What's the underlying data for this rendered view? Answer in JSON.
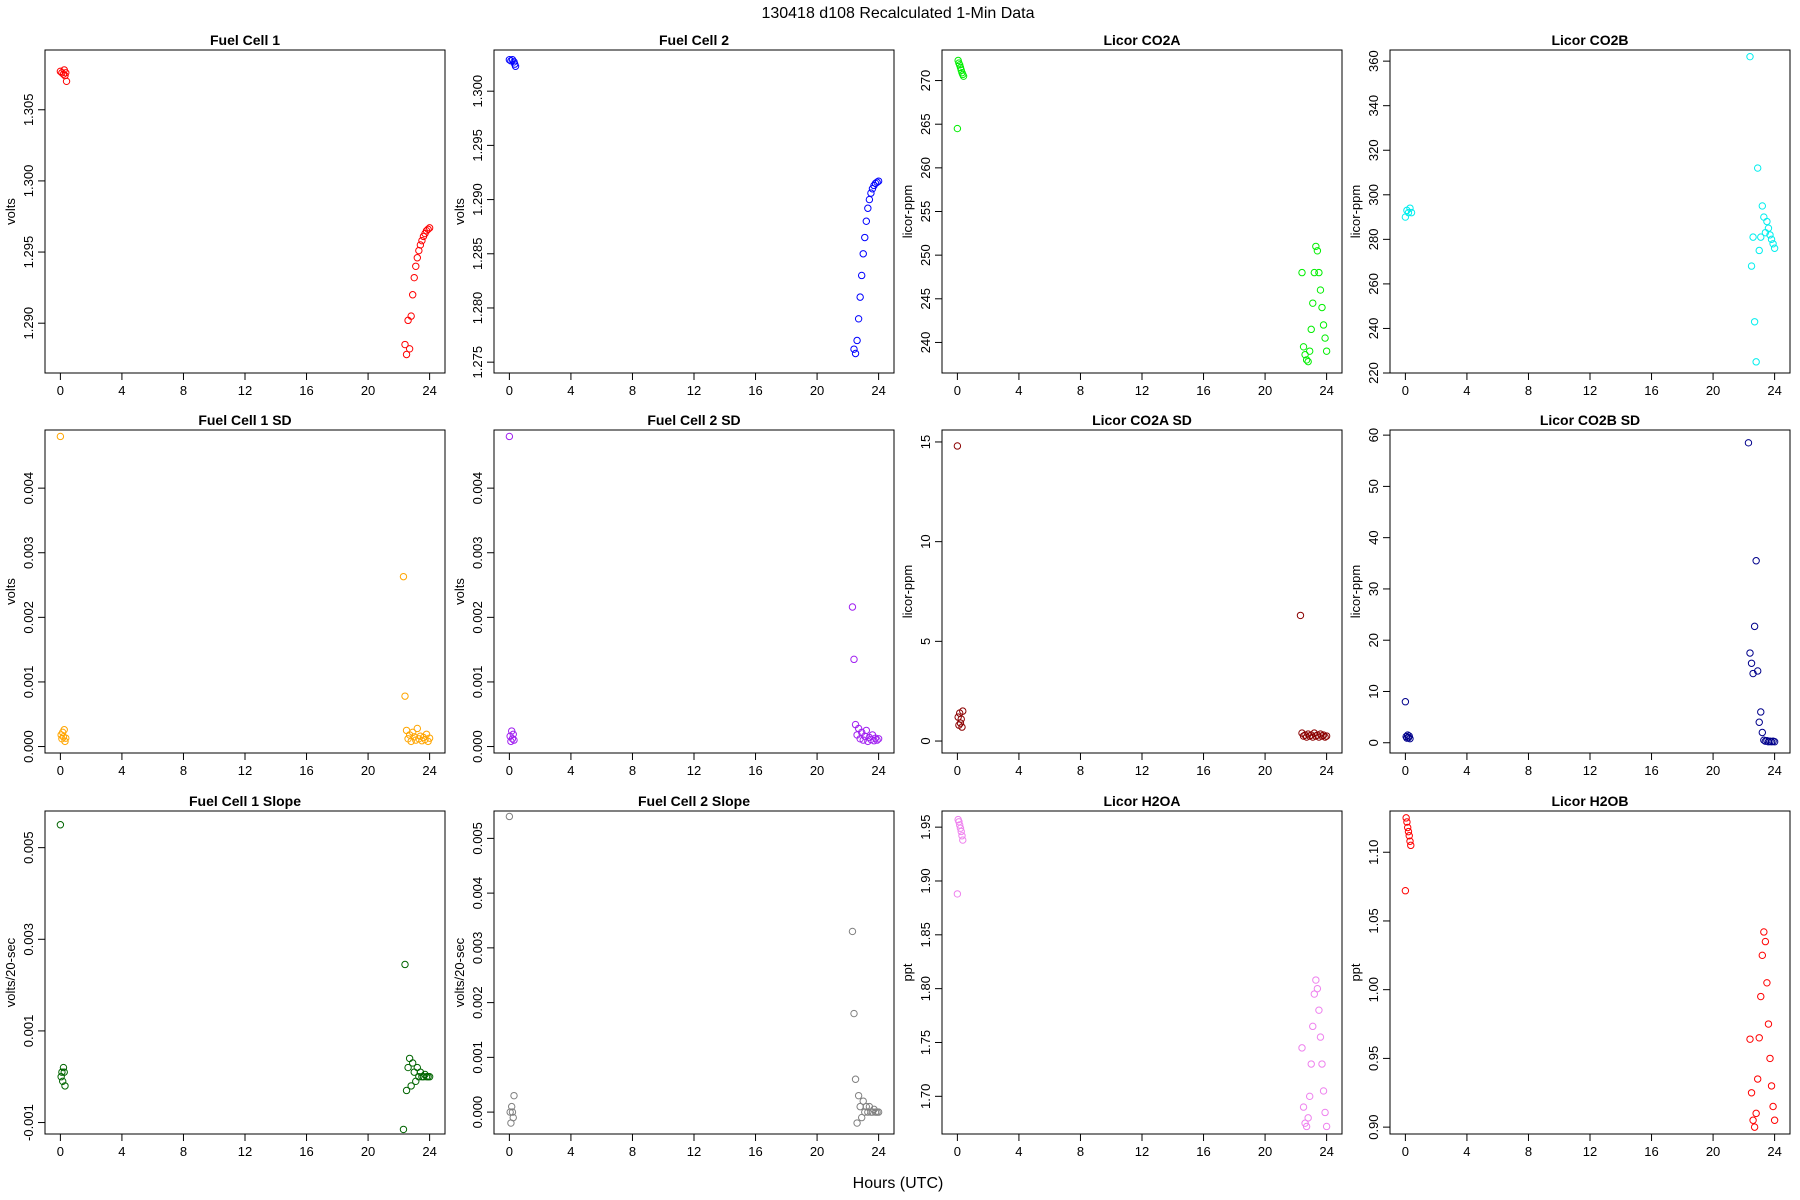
{
  "figure": {
    "suptitle": "130418   d108   Recalculated 1-Min Data",
    "xlabel": "Hours (UTC)"
  },
  "chart_data": [
    {
      "type": "scatter",
      "title": "Fuel Cell 1",
      "ylabel": "volts",
      "color": "#ff0000",
      "xlim": [
        -1,
        25
      ],
      "ylim": [
        1.2865,
        1.3092
      ],
      "xticks": [
        0,
        4,
        8,
        12,
        16,
        20,
        24
      ],
      "yticks": [
        1.29,
        1.295,
        1.3,
        1.305
      ],
      "ytick_labels": [
        "1.290",
        "1.295",
        "1.300",
        "1.305"
      ],
      "series": [
        {
          "x": [
            0.0,
            0.1,
            0.2,
            0.25,
            0.3,
            0.35,
            0.4
          ],
          "y": [
            1.3077,
            1.3076,
            1.3075,
            1.3078,
            1.3074,
            1.3076,
            1.307
          ]
        },
        {
          "x": [
            22.4,
            22.5,
            22.6,
            22.7,
            22.8,
            22.9,
            23.0,
            23.1,
            23.2,
            23.3,
            23.4,
            23.5,
            23.6,
            23.7,
            23.8,
            23.9,
            24.0
          ],
          "y": [
            1.2885,
            1.2878,
            1.2902,
            1.2882,
            1.2905,
            1.292,
            1.2932,
            1.294,
            1.2946,
            1.2951,
            1.2955,
            1.2958,
            1.2961,
            1.2963,
            1.2965,
            1.2966,
            1.2967
          ]
        }
      ]
    },
    {
      "type": "scatter",
      "title": "Fuel Cell 2",
      "ylabel": "volts",
      "color": "#0000ff",
      "xlim": [
        -1,
        25
      ],
      "ylim": [
        1.274,
        1.3038
      ],
      "xticks": [
        0,
        4,
        8,
        12,
        16,
        20,
        24
      ],
      "yticks": [
        1.275,
        1.28,
        1.285,
        1.29,
        1.295,
        1.3
      ],
      "ytick_labels": [
        "1.275",
        "1.280",
        "1.285",
        "1.290",
        "1.295",
        "1.300"
      ],
      "series": [
        {
          "x": [
            0.0,
            0.1,
            0.2,
            0.3,
            0.35,
            0.4
          ],
          "y": [
            1.3029,
            1.3028,
            1.3029,
            1.3027,
            1.3025,
            1.3023
          ]
        },
        {
          "x": [
            22.4,
            22.5,
            22.6,
            22.7,
            22.8,
            22.9,
            23.0,
            23.1,
            23.2,
            23.3,
            23.4,
            23.5,
            23.6,
            23.7,
            23.8,
            23.9,
            24.0
          ],
          "y": [
            1.2762,
            1.2758,
            1.277,
            1.279,
            1.281,
            1.283,
            1.285,
            1.2865,
            1.288,
            1.2892,
            1.29,
            1.2906,
            1.291,
            1.2913,
            1.2915,
            1.2916,
            1.2917
          ]
        }
      ]
    },
    {
      "type": "scatter",
      "title": "Licor CO2A",
      "ylabel": "licor-ppm",
      "color": "#00ee00",
      "xlim": [
        -1,
        25
      ],
      "ylim": [
        236.5,
        273.5
      ],
      "xticks": [
        0,
        4,
        8,
        12,
        16,
        20,
        24
      ],
      "yticks": [
        240,
        245,
        250,
        255,
        260,
        265,
        270
      ],
      "ytick_labels": [
        "240",
        "245",
        "250",
        "255",
        "260",
        "265",
        "270"
      ],
      "series": [
        {
          "x": [
            0.0,
            0.05,
            0.1,
            0.15,
            0.2,
            0.25,
            0.3,
            0.35,
            0.4
          ],
          "y": [
            264.5,
            272.3,
            272.0,
            271.8,
            271.5,
            271.2,
            270.9,
            270.7,
            270.5
          ]
        },
        {
          "x": [
            22.4,
            22.5,
            22.6,
            22.7,
            22.8,
            22.9,
            23.0,
            23.1,
            23.2,
            23.3,
            23.4,
            23.5,
            23.6,
            23.7,
            23.8,
            23.9,
            24.0
          ],
          "y": [
            248.0,
            239.5,
            238.6,
            238.0,
            237.8,
            239.0,
            241.5,
            244.5,
            248.0,
            251.0,
            250.5,
            248.0,
            246.0,
            244.0,
            242.0,
            240.5,
            239.0
          ]
        }
      ]
    },
    {
      "type": "scatter",
      "title": "Licor CO2B",
      "ylabel": "licor-ppm",
      "color": "#00eeee",
      "xlim": [
        -1,
        25
      ],
      "ylim": [
        220,
        365
      ],
      "xticks": [
        0,
        4,
        8,
        12,
        16,
        20,
        24
      ],
      "yticks": [
        220,
        240,
        260,
        280,
        300,
        320,
        340,
        360
      ],
      "ytick_labels": [
        "220",
        "240",
        "260",
        "280",
        "300",
        "320",
        "340",
        "360"
      ],
      "series": [
        {
          "x": [
            0.0,
            0.1,
            0.2,
            0.3,
            0.4
          ],
          "y": [
            290,
            293,
            292,
            294,
            292
          ]
        },
        {
          "x": [
            22.4,
            22.5,
            22.6,
            22.7,
            22.8,
            22.9,
            23.0,
            23.1,
            23.2,
            23.3,
            23.4,
            23.5,
            23.6,
            23.7,
            23.8,
            23.9,
            24.0
          ],
          "y": [
            362,
            268,
            281,
            243,
            225,
            312,
            275,
            281,
            295,
            290,
            283,
            288,
            285,
            282,
            280,
            278,
            276
          ]
        }
      ]
    },
    {
      "type": "scatter",
      "title": "Fuel Cell 1 SD",
      "ylabel": "volts",
      "color": "#ffa500",
      "xlim": [
        -1,
        25
      ],
      "ylim": [
        -0.0001,
        0.0049
      ],
      "xticks": [
        0,
        4,
        8,
        12,
        16,
        20,
        24
      ],
      "yticks": [
        0.0,
        0.001,
        0.002,
        0.003,
        0.004
      ],
      "ytick_labels": [
        "0.000",
        "0.001",
        "0.002",
        "0.003",
        "0.004"
      ],
      "series": [
        {
          "x": [
            0.0,
            0.05,
            0.1,
            0.15,
            0.2,
            0.25,
            0.3,
            0.35
          ],
          "y": [
            0.0048,
            0.00018,
            0.00012,
            0.00022,
            0.00015,
            0.00026,
            8e-05,
            0.00013
          ]
        },
        {
          "x": [
            22.3,
            22.4,
            22.5,
            22.6,
            22.7,
            22.8,
            22.9,
            23.0,
            23.1,
            23.2,
            23.3,
            23.4,
            23.5,
            23.6,
            23.7,
            23.8,
            23.9,
            24.0
          ],
          "y": [
            0.00263,
            0.00078,
            0.00025,
            0.00012,
            0.00018,
            8e-05,
            0.00022,
            0.00015,
            0.0001,
            0.00028,
            0.00012,
            0.00016,
            9e-05,
            0.00014,
            0.00011,
            0.00019,
            8e-05,
            0.00013
          ]
        }
      ]
    },
    {
      "type": "scatter",
      "title": "Fuel Cell 2 SD",
      "ylabel": "volts",
      "color": "#a020f0",
      "xlim": [
        -1,
        25
      ],
      "ylim": [
        -0.0001,
        0.0049
      ],
      "xticks": [
        0,
        4,
        8,
        12,
        16,
        20,
        24
      ],
      "yticks": [
        0.0,
        0.001,
        0.002,
        0.003,
        0.004
      ],
      "ytick_labels": [
        "0.000",
        "0.001",
        "0.002",
        "0.003",
        "0.004"
      ],
      "series": [
        {
          "x": [
            0.0,
            0.05,
            0.1,
            0.15,
            0.2,
            0.25,
            0.3
          ],
          "y": [
            0.0048,
            0.00016,
            8e-05,
            0.00024,
            0.00012,
            0.00019,
            0.0001
          ]
        },
        {
          "x": [
            22.3,
            22.4,
            22.5,
            22.6,
            22.7,
            22.8,
            22.9,
            23.0,
            23.1,
            23.2,
            23.3,
            23.4,
            23.5,
            23.6,
            23.7,
            23.8,
            23.9,
            24.0
          ],
          "y": [
            0.00216,
            0.00135,
            0.00034,
            0.00018,
            0.00028,
            0.00012,
            0.00022,
            0.0001,
            0.00016,
            0.00025,
            8e-05,
            0.00014,
            0.00011,
            0.00018,
            9e-05,
            0.00013,
            0.0001,
            0.00012
          ]
        }
      ]
    },
    {
      "type": "scatter",
      "title": "Licor CO2A SD",
      "ylabel": "licor-ppm",
      "color": "#8b0000",
      "xlim": [
        -1,
        25
      ],
      "ylim": [
        -0.6,
        15.6
      ],
      "xticks": [
        0,
        4,
        8,
        12,
        16,
        20,
        24
      ],
      "yticks": [
        0,
        5,
        10,
        15
      ],
      "ytick_labels": [
        "0",
        "5",
        "10",
        "15"
      ],
      "series": [
        {
          "x": [
            0.0,
            0.05,
            0.1,
            0.15,
            0.2,
            0.25,
            0.3,
            0.35
          ],
          "y": [
            14.8,
            1.2,
            0.8,
            1.4,
            0.9,
            1.1,
            0.7,
            1.5
          ]
        },
        {
          "x": [
            22.3,
            22.4,
            22.5,
            22.6,
            22.7,
            22.8,
            22.9,
            23.0,
            23.1,
            23.2,
            23.3,
            23.4,
            23.5,
            23.6,
            23.7,
            23.8,
            23.9,
            24.0
          ],
          "y": [
            6.3,
            0.4,
            0.25,
            0.3,
            0.2,
            0.35,
            0.25,
            0.3,
            0.2,
            0.4,
            0.25,
            0.3,
            0.2,
            0.35,
            0.25,
            0.3,
            0.2,
            0.25
          ]
        }
      ]
    },
    {
      "type": "scatter",
      "title": "Licor CO2B SD",
      "ylabel": "licor-ppm",
      "color": "#00008b",
      "xlim": [
        -1,
        25
      ],
      "ylim": [
        -2,
        61
      ],
      "xticks": [
        0,
        4,
        8,
        12,
        16,
        20,
        24
      ],
      "yticks": [
        0,
        10,
        20,
        30,
        40,
        50,
        60
      ],
      "ytick_labels": [
        "0",
        "10",
        "20",
        "30",
        "40",
        "50",
        "60"
      ],
      "series": [
        {
          "x": [
            0.0,
            0.05,
            0.1,
            0.15,
            0.2,
            0.25,
            0.3
          ],
          "y": [
            8.0,
            1.2,
            0.9,
            1.5,
            1.0,
            1.3,
            0.8
          ]
        },
        {
          "x": [
            22.3,
            22.4,
            22.5,
            22.6,
            22.7,
            22.8,
            22.9,
            23.0,
            23.1,
            23.2,
            23.3,
            23.4,
            23.5,
            23.6,
            23.7,
            23.8,
            23.9,
            24.0
          ],
          "y": [
            58.5,
            17.5,
            15.5,
            13.5,
            22.7,
            35.5,
            14.0,
            4.0,
            6.0,
            2.0,
            0.5,
            0.3,
            0.4,
            0.2,
            0.3,
            0.2,
            0.3,
            0.2
          ]
        }
      ]
    },
    {
      "type": "scatter",
      "title": "Fuel Cell 1 Slope",
      "ylabel": "volts/20-sec",
      "color": "#006400",
      "xlim": [
        -1,
        25
      ],
      "ylim": [
        -0.00125,
        0.0058
      ],
      "xticks": [
        0,
        4,
        8,
        12,
        16,
        20,
        24
      ],
      "yticks": [
        -0.001,
        0.001,
        0.003,
        0.005
      ],
      "ytick_labels": [
        "-0.001",
        "0.001",
        "0.003",
        "0.005"
      ],
      "series": [
        {
          "x": [
            0.0,
            0.05,
            0.1,
            0.15,
            0.2,
            0.25,
            0.3
          ],
          "y": [
            0.0055,
            0.0,
            0.0001,
            -0.0001,
            0.0002,
            0.0001,
            -0.0002
          ]
        },
        {
          "x": [
            22.3,
            22.4,
            22.5,
            22.6,
            22.7,
            22.8,
            22.9,
            23.0,
            23.1,
            23.2,
            23.3,
            23.4,
            23.5,
            23.6,
            23.7,
            23.8,
            23.9,
            24.0
          ],
          "y": [
            -0.00115,
            0.00245,
            -0.0003,
            0.0002,
            0.0004,
            -0.0002,
            0.0003,
            0.0001,
            -0.0001,
            0.0002,
            0.0,
            0.0001,
            0.0,
            0.0,
            5e-05,
            0.0,
            0.0,
            0.0
          ]
        }
      ]
    },
    {
      "type": "scatter",
      "title": "Fuel Cell 2 Slope",
      "ylabel": "volts/20-sec",
      "color": "#808080",
      "xlim": [
        -1,
        25
      ],
      "ylim": [
        -0.0004,
        0.0055
      ],
      "xticks": [
        0,
        4,
        8,
        12,
        16,
        20,
        24
      ],
      "yticks": [
        0.0,
        0.001,
        0.002,
        0.003,
        0.004,
        0.005
      ],
      "ytick_labels": [
        "0.000",
        "0.001",
        "0.002",
        "0.003",
        "0.004",
        "0.005"
      ],
      "series": [
        {
          "x": [
            0.0,
            0.05,
            0.1,
            0.15,
            0.2,
            0.25,
            0.3
          ],
          "y": [
            0.0054,
            0.0,
            -0.0002,
            0.0001,
            0.0,
            -0.0001,
            0.0003
          ]
        },
        {
          "x": [
            22.3,
            22.4,
            22.5,
            22.6,
            22.7,
            22.8,
            22.9,
            23.0,
            23.1,
            23.2,
            23.3,
            23.4,
            23.5,
            23.6,
            23.7,
            23.8,
            23.9,
            24.0
          ],
          "y": [
            0.0033,
            0.0018,
            0.0006,
            -0.0002,
            0.0003,
            0.0001,
            -0.0001,
            0.0002,
            0.0,
            0.0001,
            0.0,
            0.0001,
            0.0,
            0.0,
            5e-05,
            0.0,
            0.0,
            0.0
          ]
        }
      ]
    },
    {
      "type": "scatter",
      "title": "Licor H2OA",
      "ylabel": "ppt",
      "color": "#ee82ee",
      "xlim": [
        -1,
        25
      ],
      "ylim": [
        1.665,
        1.965
      ],
      "xticks": [
        0,
        4,
        8,
        12,
        16,
        20,
        24
      ],
      "yticks": [
        1.7,
        1.75,
        1.8,
        1.85,
        1.9,
        1.95
      ],
      "ytick_labels": [
        "1.70",
        "1.75",
        "1.80",
        "1.85",
        "1.90",
        "1.95"
      ],
      "series": [
        {
          "x": [
            0.0,
            0.05,
            0.1,
            0.15,
            0.2,
            0.25,
            0.3,
            0.35
          ],
          "y": [
            1.888,
            1.957,
            1.955,
            1.952,
            1.949,
            1.946,
            1.942,
            1.938
          ]
        },
        {
          "x": [
            22.4,
            22.5,
            22.6,
            22.7,
            22.8,
            22.9,
            23.0,
            23.1,
            23.2,
            23.3,
            23.4,
            23.5,
            23.6,
            23.7,
            23.8,
            23.9,
            24.0
          ],
          "y": [
            1.745,
            1.69,
            1.675,
            1.672,
            1.68,
            1.7,
            1.73,
            1.765,
            1.795,
            1.808,
            1.8,
            1.78,
            1.755,
            1.73,
            1.705,
            1.685,
            1.672
          ]
        }
      ]
    },
    {
      "type": "scatter",
      "title": "Licor H2OB",
      "ylabel": "ppt",
      "color": "#ff0000",
      "xlim": [
        -1,
        25
      ],
      "ylim": [
        0.895,
        1.13
      ],
      "xticks": [
        0,
        4,
        8,
        12,
        16,
        20,
        24
      ],
      "yticks": [
        0.9,
        0.95,
        1.0,
        1.05,
        1.1
      ],
      "ytick_labels": [
        "0.90",
        "0.95",
        "1.00",
        "1.05",
        "1.10"
      ],
      "series": [
        {
          "x": [
            0.0,
            0.05,
            0.1,
            0.15,
            0.2,
            0.25,
            0.3,
            0.35
          ],
          "y": [
            1.072,
            1.125,
            1.122,
            1.118,
            1.115,
            1.112,
            1.108,
            1.105
          ]
        },
        {
          "x": [
            22.4,
            22.5,
            22.6,
            22.7,
            22.8,
            22.9,
            23.0,
            23.1,
            23.2,
            23.3,
            23.4,
            23.5,
            23.6,
            23.7,
            23.8,
            23.9,
            24.0
          ],
          "y": [
            0.964,
            0.925,
            0.905,
            0.9,
            0.91,
            0.935,
            0.965,
            0.995,
            1.025,
            1.042,
            1.035,
            1.005,
            0.975,
            0.95,
            0.93,
            0.915,
            0.905
          ]
        }
      ]
    }
  ]
}
